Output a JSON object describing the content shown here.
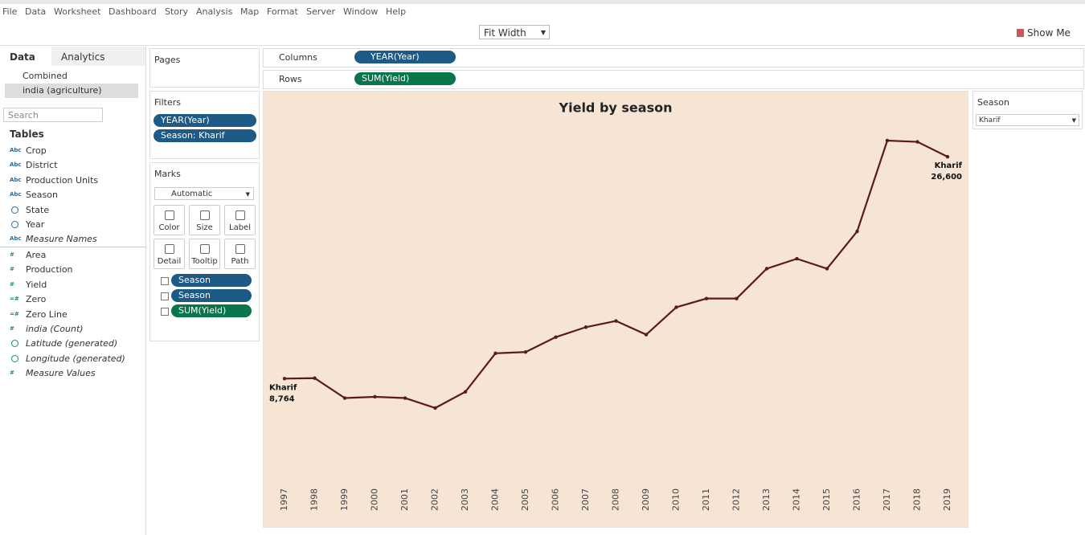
{
  "menu": [
    "File",
    "Data",
    "Worksheet",
    "Dashboard",
    "Story",
    "Analysis",
    "Map",
    "Format",
    "Server",
    "Window",
    "Help"
  ],
  "toolbar": {
    "fit": "Fit Width",
    "show_me": "Show Me"
  },
  "data_pane": {
    "tabs": [
      "Data",
      "Analytics"
    ],
    "sources": [
      "Combined",
      "india (agriculture)"
    ],
    "search": "Search",
    "tables_title": "Tables",
    "dimensions": [
      {
        "icon": "Abc",
        "name": "Crop"
      },
      {
        "icon": "Abc",
        "name": "District"
      },
      {
        "icon": "Abc",
        "name": "Production Units"
      },
      {
        "icon": "Abc",
        "name": "Season"
      },
      {
        "name": "State"
      },
      {
        "name": "Year"
      },
      {
        "icon": "Abc",
        "name": "Measure Names"
      }
    ],
    "measures": [
      {
        "icon": "#",
        "name": "Area"
      },
      {
        "icon": "#",
        "name": "Production"
      },
      {
        "icon": "#",
        "name": "Yield"
      },
      {
        "icon": "=#",
        "name": "Zero"
      },
      {
        "icon": "=#",
        "name": "Zero Line"
      },
      {
        "icon": "#",
        "name": "india (Count)"
      },
      {
        "name": "Latitude (generated)"
      },
      {
        "name": "Longitude (generated)"
      },
      {
        "icon": "#",
        "name": "Measure Values"
      }
    ]
  },
  "pages": {
    "title": "Pages"
  },
  "filters": {
    "title": "Filters",
    "pills": [
      "YEAR(Year)",
      "Season: Kharif"
    ]
  },
  "marks": {
    "title": "Marks",
    "type": "Automatic",
    "buttons": [
      "Color",
      "Size",
      "Label",
      "Detail",
      "Tooltip",
      "Path"
    ],
    "pills": [
      "Season",
      "Season",
      "SUM(Yield)"
    ]
  },
  "shelves": {
    "columns_label": "Columns",
    "columns_pill": "YEAR(Year)",
    "rows_label": "Rows",
    "rows_pill": "SUM(Yield)"
  },
  "season_filter": {
    "title": "Season",
    "value": "Kharif"
  },
  "chart_data": {
    "type": "line",
    "title": "Yield by season",
    "x": [
      1997,
      1998,
      1999,
      2000,
      2001,
      2002,
      2003,
      2004,
      2005,
      2006,
      2007,
      2008,
      2009,
      2010,
      2011,
      2012,
      2013,
      2014,
      2015,
      2016,
      2017,
      2018,
      2019
    ],
    "series": [
      {
        "name": "Kharif",
        "color": "#5a1a1e",
        "values": [
          8764,
          8800,
          7200,
          7300,
          7200,
          6400,
          7700,
          10800,
          10900,
          12100,
          12900,
          13400,
          12300,
          14500,
          15200,
          15200,
          17600,
          18400,
          17600,
          20600,
          27900,
          27800,
          26600
        ],
        "value_labels": [
          "8,764",
          null,
          null,
          null,
          null,
          null,
          null,
          null,
          null,
          null,
          null,
          null,
          null,
          null,
          null,
          null,
          null,
          null,
          null,
          null,
          null,
          null,
          "26,600"
        ]
      }
    ]
  }
}
